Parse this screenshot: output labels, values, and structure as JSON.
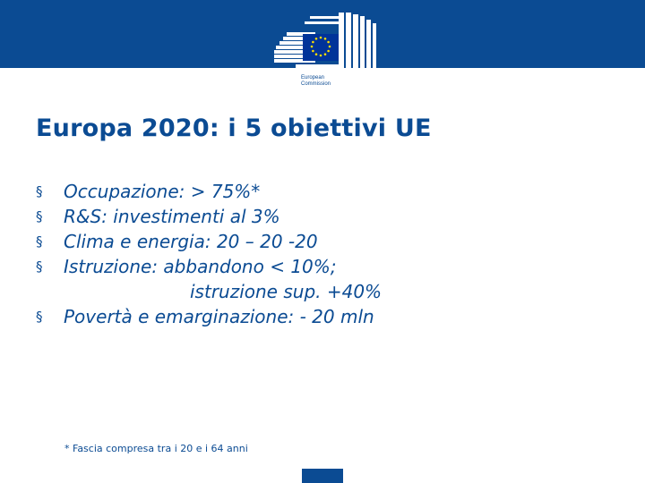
{
  "header": {
    "logo_text_line1": "European",
    "logo_text_line2": "Commission",
    "colors": {
      "band": "#0b4b93",
      "flag_blue": "#003399",
      "star_yellow": "#ffdd00"
    }
  },
  "slide": {
    "title": "Europa 2020: i 5 obiettivi UE",
    "bullet_marker": "§",
    "bullets": [
      "Occupazione: > 75%*",
      "R&S: investimenti al 3%",
      "Clima e energia: 20 – 20 -20",
      "Istruzione: abbandono < 10%;",
      "istruzione sup. +40%",
      "Povertà e emarginazione: - 20 mln"
    ],
    "footnote": "* Fascia compresa tra i 20 e i 64 anni"
  }
}
